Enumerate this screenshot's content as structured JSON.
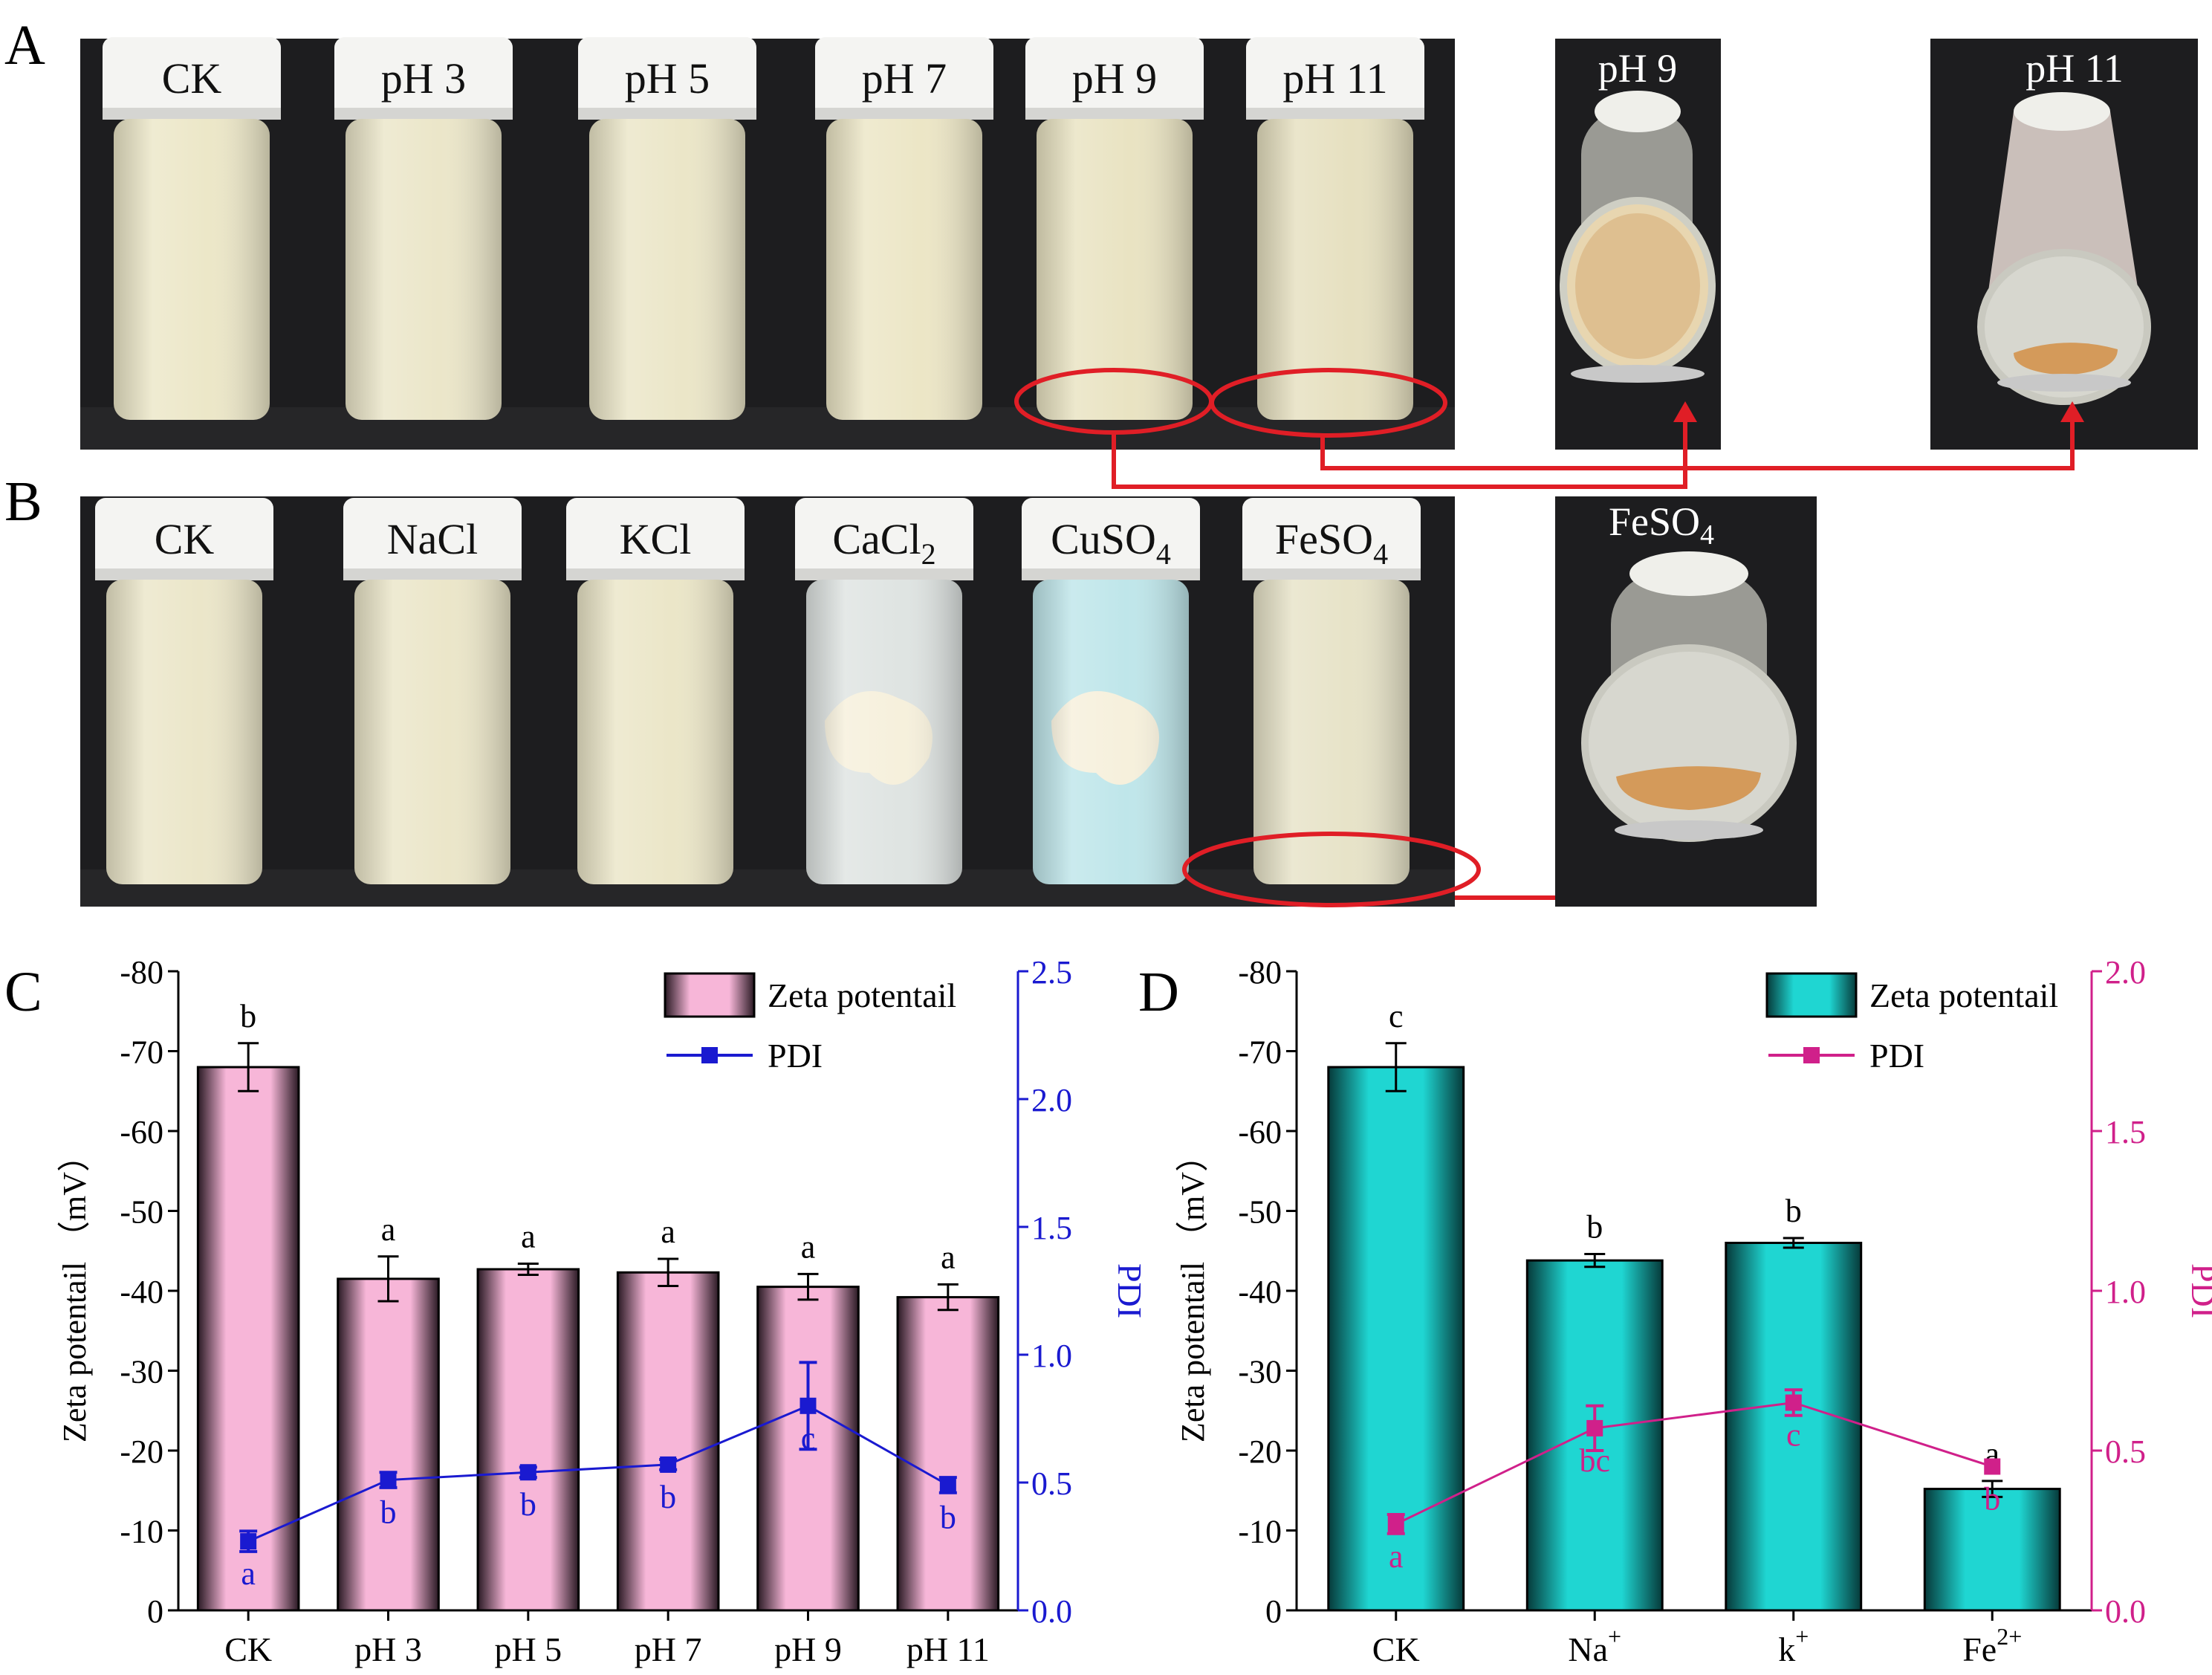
{
  "panels": {
    "A": {
      "letter": "A",
      "vials": [
        "CK",
        "pH 3",
        "pH 5",
        "pH 7",
        "pH 9",
        "pH 11"
      ],
      "insets": [
        "pH 9",
        "pH 11"
      ],
      "vial_tones": [
        "#ece7c8",
        "#ebe6c9",
        "#ebe6c8",
        "#ece6c6",
        "#e9e3c2",
        "#e6e0c0"
      ],
      "colors": {
        "photo_bg": "#1d1d1f",
        "circle": "#e01e26",
        "arrow": "#e01e26",
        "sediment": "#d49a5a"
      }
    },
    "B": {
      "letter": "B",
      "vials": [
        {
          "main": "CK",
          "sub": "",
          "tail": ""
        },
        {
          "main": "NaCl",
          "sub": "",
          "tail": ""
        },
        {
          "main": "KCl",
          "sub": "",
          "tail": ""
        },
        {
          "main": "CaCl",
          "sub": "2",
          "tail": ""
        },
        {
          "main": "CuSO",
          "sub": "4",
          "tail": ""
        },
        {
          "main": "FeSO",
          "sub": "4",
          "tail": ""
        }
      ],
      "inset": {
        "main": "FeSO",
        "sub": "4"
      },
      "vial_tones": [
        "#ebe6c9",
        "#ebe6c9",
        "#ebe6c8",
        "#dfe4e2",
        "#bfe6ea",
        "#e7e3c8"
      ],
      "colors": {
        "clear_liquid": "#dfe4e2",
        "blue_liquid": "#8fd6df",
        "aggregate": "#f6f0dc"
      }
    }
  },
  "chart_data": [
    {
      "panel": "C",
      "type": "bar",
      "categories": [
        "CK",
        "pH 3",
        "pH 5",
        "pH 7",
        "pH 9",
        "pH 11"
      ],
      "series": [
        {
          "name": "Zeta potentail",
          "values": [
            -68,
            -41.5,
            -42.7,
            -42.3,
            -40.5,
            -39.2
          ],
          "errors": [
            3,
            2.8,
            0.7,
            1.7,
            1.6,
            1.6
          ],
          "letters": [
            "b",
            "a",
            "a",
            "a",
            "a",
            "a"
          ],
          "color": "#f7b6d8"
        },
        {
          "name": "PDI",
          "type": "line",
          "axis": "right",
          "values": [
            0.27,
            0.51,
            0.54,
            0.57,
            0.8,
            0.49
          ],
          "errors": [
            0.04,
            0.03,
            0.02,
            0.02,
            0.17,
            0.03
          ],
          "letters": [
            "a",
            "b",
            "b",
            "b",
            "c",
            "b"
          ],
          "color": "#1a1ad0"
        }
      ],
      "ylabel": "Zeta potentail （mV）",
      "ylim": [
        0,
        -80
      ],
      "y_ticks": [
        "0",
        "-10",
        "-20",
        "-30",
        "-40",
        "-50",
        "-60",
        "-70",
        "-80"
      ],
      "y2label": "PDI",
      "y2lim": [
        0,
        2.5
      ],
      "y2_ticks": [
        "0.0",
        "0.5",
        "1.0",
        "1.5",
        "2.0",
        "2.5"
      ],
      "legend": [
        "Zeta potentail",
        "PDI"
      ],
      "legend_position": "top-right"
    },
    {
      "panel": "D",
      "type": "bar",
      "categories": [
        {
          "main": "CK",
          "sup": ""
        },
        {
          "main": "Na",
          "sup": "+"
        },
        {
          "main": "k",
          "sup": "+"
        },
        {
          "main": "Fe",
          "sup": "2+"
        }
      ],
      "series": [
        {
          "name": "Zeta potentail",
          "values": [
            -68,
            -43.8,
            -46,
            -15.2
          ],
          "errors": [
            3,
            0.8,
            0.6,
            1
          ],
          "letters": [
            "c",
            "b",
            "b",
            "a"
          ],
          "color": "#19d3cf"
        },
        {
          "name": "PDI",
          "type": "line",
          "axis": "right",
          "values": [
            0.27,
            0.57,
            0.65,
            0.45
          ],
          "errors": [
            0.03,
            0.07,
            0.04,
            0
          ],
          "letters": [
            "a",
            "bc",
            "c",
            "b"
          ],
          "color": "#d0208a"
        }
      ],
      "ylabel": "Zeta potentail （mV）",
      "ylim": [
        0,
        -80
      ],
      "y_ticks": [
        "0",
        "-10",
        "-20",
        "-30",
        "-40",
        "-50",
        "-60",
        "-70",
        "-80"
      ],
      "y2label": "PDI",
      "y2lim": [
        0,
        2
      ],
      "y2_ticks": [
        "0.0",
        "0.5",
        "1.0",
        "1.5",
        "2.0"
      ],
      "legend": [
        "Zeta potentail",
        "PDI"
      ],
      "legend_position": "top-right"
    }
  ]
}
